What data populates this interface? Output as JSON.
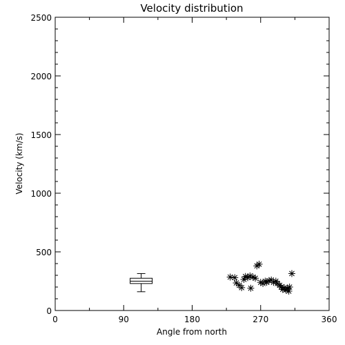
{
  "chart_data": {
    "type": "scatter",
    "title": "Velocity distribution",
    "xlabel": "Angle from north",
    "ylabel": "Velocity (km/s)",
    "xlim": [
      0,
      360
    ],
    "ylim": [
      0,
      2500
    ],
    "xticks": [
      0,
      90,
      180,
      270,
      360
    ],
    "yticks": [
      0,
      500,
      1000,
      1500,
      2000,
      2500
    ],
    "grid": false,
    "marker": "asterisk",
    "box": {
      "x": 113,
      "whisker_low": 160,
      "q1": 230,
      "median": 250,
      "q3": 275,
      "whisker_high": 315
    },
    "points": [
      {
        "x": 230,
        "y": 285
      },
      {
        "x": 236,
        "y": 280
      },
      {
        "x": 238,
        "y": 235
      },
      {
        "x": 242,
        "y": 215
      },
      {
        "x": 245,
        "y": 195
      },
      {
        "x": 248,
        "y": 265
      },
      {
        "x": 250,
        "y": 290
      },
      {
        "x": 253,
        "y": 280
      },
      {
        "x": 256,
        "y": 295
      },
      {
        "x": 257,
        "y": 190
      },
      {
        "x": 260,
        "y": 285
      },
      {
        "x": 263,
        "y": 275
      },
      {
        "x": 265,
        "y": 380
      },
      {
        "x": 268,
        "y": 395
      },
      {
        "x": 270,
        "y": 240
      },
      {
        "x": 273,
        "y": 230
      },
      {
        "x": 276,
        "y": 250
      },
      {
        "x": 278,
        "y": 240
      },
      {
        "x": 281,
        "y": 255
      },
      {
        "x": 284,
        "y": 260
      },
      {
        "x": 287,
        "y": 240
      },
      {
        "x": 290,
        "y": 250
      },
      {
        "x": 292,
        "y": 230
      },
      {
        "x": 295,
        "y": 215
      },
      {
        "x": 297,
        "y": 200
      },
      {
        "x": 299,
        "y": 180
      },
      {
        "x": 301,
        "y": 195
      },
      {
        "x": 303,
        "y": 175
      },
      {
        "x": 305,
        "y": 185
      },
      {
        "x": 307,
        "y": 165
      },
      {
        "x": 308,
        "y": 200
      },
      {
        "x": 311,
        "y": 315
      }
    ]
  }
}
